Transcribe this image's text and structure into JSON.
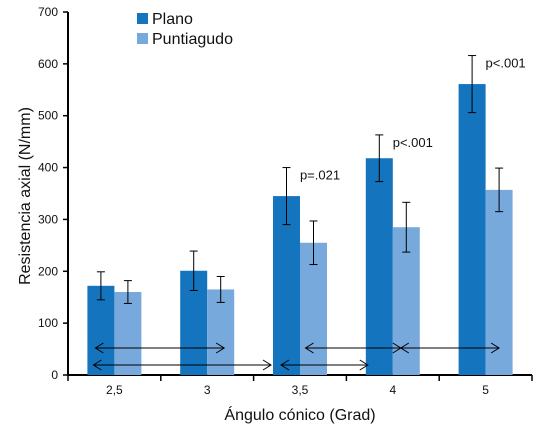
{
  "colors": {
    "plano": "#1474bd",
    "puntiagudo": "#77a9dc",
    "axis": "#000000"
  },
  "chart_data": {
    "type": "bar",
    "categories": [
      "2,5",
      "3",
      "3,5",
      "4",
      "5"
    ],
    "series": [
      {
        "name": "Plano",
        "values": [
          172,
          201,
          345,
          418,
          561
        ],
        "errors": [
          27,
          38,
          55,
          45,
          55
        ]
      },
      {
        "name": "Puntiagudo",
        "values": [
          160,
          165,
          255,
          285,
          357
        ],
        "errors": [
          22,
          25,
          42,
          48,
          42
        ]
      }
    ],
    "xlabel": "Ángulo cónico (Grad)",
    "ylabel": "Resistencia axial (N/mm)",
    "ylim": [
      0,
      700
    ],
    "yticks": [
      0,
      100,
      200,
      300,
      400,
      500,
      600,
      700
    ],
    "grid": false,
    "legend_position": "top-left",
    "annotations": [
      {
        "text": "p=.021",
        "category": "3,5"
      },
      {
        "text": "p<.001",
        "category": "4"
      },
      {
        "text": "p<.001",
        "category": "5"
      }
    ],
    "brackets": [
      {
        "from": "2,5",
        "to": "3,5"
      },
      {
        "from": "2,5",
        "to": "3"
      },
      {
        "from": "3,5",
        "to": "4"
      },
      {
        "from": "3,5",
        "to": "4"
      },
      {
        "from": "4",
        "to": "5"
      }
    ]
  }
}
